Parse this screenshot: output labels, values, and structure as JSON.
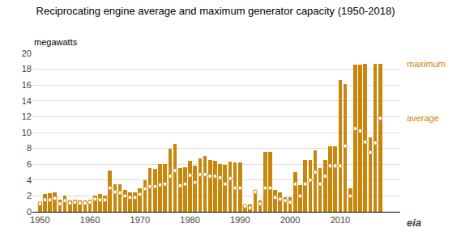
{
  "chart_data": {
    "type": "bar",
    "title": "Reciprocating engine average and maximum generator capacity (1950-2018)",
    "ylabel": "megawatts",
    "annotations": [
      "eia"
    ],
    "x": [
      1950,
      1951,
      1952,
      1953,
      1954,
      1955,
      1956,
      1957,
      1958,
      1959,
      1960,
      1961,
      1962,
      1963,
      1964,
      1965,
      1966,
      1967,
      1968,
      1969,
      1970,
      1971,
      1972,
      1973,
      1974,
      1975,
      1976,
      1977,
      1978,
      1979,
      1980,
      1981,
      1982,
      1983,
      1984,
      1985,
      1986,
      1987,
      1988,
      1989,
      1990,
      1991,
      1992,
      1993,
      1994,
      1995,
      1996,
      1997,
      1998,
      1999,
      2000,
      2001,
      2002,
      2003,
      2004,
      2005,
      2006,
      2007,
      2008,
      2009,
      2010,
      2011,
      2012,
      2013,
      2014,
      2015,
      2016,
      2017,
      2018
    ],
    "series": [
      {
        "name": "maximum",
        "type": "bar",
        "color": "#C8860A",
        "values": [
          1.2,
          2.2,
          2.3,
          2.5,
          1.5,
          2.0,
          1.4,
          1.5,
          1.4,
          1.4,
          1.5,
          2.0,
          2.2,
          2.0,
          5.2,
          3.5,
          3.5,
          2.8,
          2.5,
          2.5,
          3.0,
          4.0,
          5.5,
          5.4,
          6.0,
          6.0,
          8.0,
          8.6,
          5.5,
          5.6,
          6.4,
          5.8,
          6.7,
          7.0,
          6.5,
          6.4,
          6.0,
          5.9,
          6.3,
          6.2,
          6.2,
          0.8,
          0.9,
          2.8,
          1.4,
          7.6,
          7.6,
          2.8,
          2.5,
          1.8,
          1.8,
          5.0,
          3.4,
          6.5,
          6.5,
          7.8,
          5.5,
          6.5,
          8.3,
          8.3,
          16.6,
          16.1,
          3.0,
          18.6,
          18.6,
          18.7,
          9.4,
          18.7,
          18.7
        ]
      },
      {
        "name": "average",
        "type": "scatter",
        "marker": "circle",
        "color": "#C8860A",
        "values": [
          1.0,
          1.5,
          1.5,
          1.7,
          1.0,
          1.4,
          1.1,
          1.2,
          1.1,
          1.1,
          1.2,
          1.6,
          1.5,
          1.5,
          3.0,
          2.5,
          2.4,
          2.0,
          1.8,
          1.8,
          2.2,
          2.9,
          3.2,
          3.2,
          3.4,
          3.5,
          4.5,
          5.2,
          3.3,
          3.5,
          4.6,
          3.7,
          4.7,
          4.7,
          4.5,
          4.5,
          4.3,
          3.5,
          4.2,
          3.0,
          3.0,
          0.7,
          0.5,
          2.5,
          1.0,
          3.0,
          3.0,
          1.8,
          1.6,
          1.4,
          1.2,
          3.5,
          2.0,
          3.5,
          4.0,
          5.0,
          3.5,
          4.5,
          5.8,
          5.8,
          5.8,
          8.3,
          2.0,
          10.5,
          10.2,
          8.8,
          7.5,
          8.7,
          11.8
        ]
      }
    ],
    "xlim": [
      1948.5,
      2022
    ],
    "xticks": [
      1950,
      1960,
      1970,
      1980,
      1990,
      2000,
      2010
    ],
    "ylim": [
      0,
      20
    ],
    "yticks": [
      0,
      2,
      4,
      6,
      8,
      10,
      12,
      14,
      16,
      18,
      20
    ],
    "grid": true
  }
}
